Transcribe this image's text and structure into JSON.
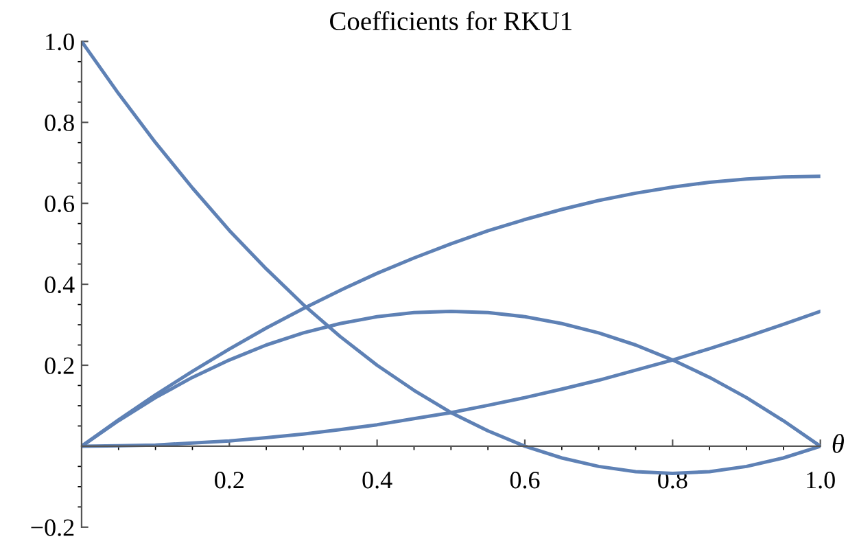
{
  "chart_data": {
    "type": "line",
    "title": "Coefficients for RKU1",
    "xlabel": "θ",
    "x": [
      0,
      0.05,
      0.1,
      0.15,
      0.2,
      0.25,
      0.3,
      0.35,
      0.4,
      0.45,
      0.5,
      0.55,
      0.6,
      0.65,
      0.7,
      0.75,
      0.8,
      0.85,
      0.9,
      0.95,
      1.0
    ],
    "series": [
      {
        "color": "#5e81b5",
        "values": [
          1,
          0.871,
          0.75,
          0.638,
          0.533,
          0.438,
          0.35,
          0.271,
          0.2,
          0.138,
          0.083,
          0.038,
          0,
          -0.029,
          -0.05,
          -0.063,
          -0.067,
          -0.063,
          -0.05,
          -0.029,
          0
        ]
      },
      {
        "color": "#5e81b5",
        "values": [
          0,
          0.063,
          0.12,
          0.17,
          0.213,
          0.25,
          0.28,
          0.303,
          0.32,
          0.33,
          0.333,
          0.33,
          0.32,
          0.303,
          0.28,
          0.25,
          0.213,
          0.17,
          0.12,
          0.063,
          0
        ]
      },
      {
        "color": "#5e81b5",
        "values": [
          0,
          0.065,
          0.127,
          0.185,
          0.24,
          0.292,
          0.34,
          0.385,
          0.427,
          0.465,
          0.5,
          0.532,
          0.56,
          0.585,
          0.607,
          0.625,
          0.64,
          0.652,
          0.66,
          0.665,
          0.667
        ]
      },
      {
        "color": "#5e81b5",
        "values": [
          0,
          0.001,
          0.003,
          0.008,
          0.013,
          0.021,
          0.03,
          0.041,
          0.053,
          0.068,
          0.083,
          0.101,
          0.12,
          0.141,
          0.163,
          0.188,
          0.213,
          0.241,
          0.27,
          0.301,
          0.333
        ]
      }
    ],
    "xlim": [
      0,
      1.0
    ],
    "ylim": [
      -0.2,
      1.0
    ],
    "xticks": [
      0.2,
      0.4,
      0.6,
      0.8,
      {
        "value": 1.0,
        "label": "1.0"
      }
    ],
    "yticks": [
      -0.2,
      {
        "value": 0,
        "label": null
      },
      0.2,
      0.4,
      0.6,
      0.8,
      {
        "value": 1.0,
        "label": "1.0"
      }
    ],
    "grid": false,
    "legend": false,
    "marker": "none",
    "line_style": "solid"
  }
}
